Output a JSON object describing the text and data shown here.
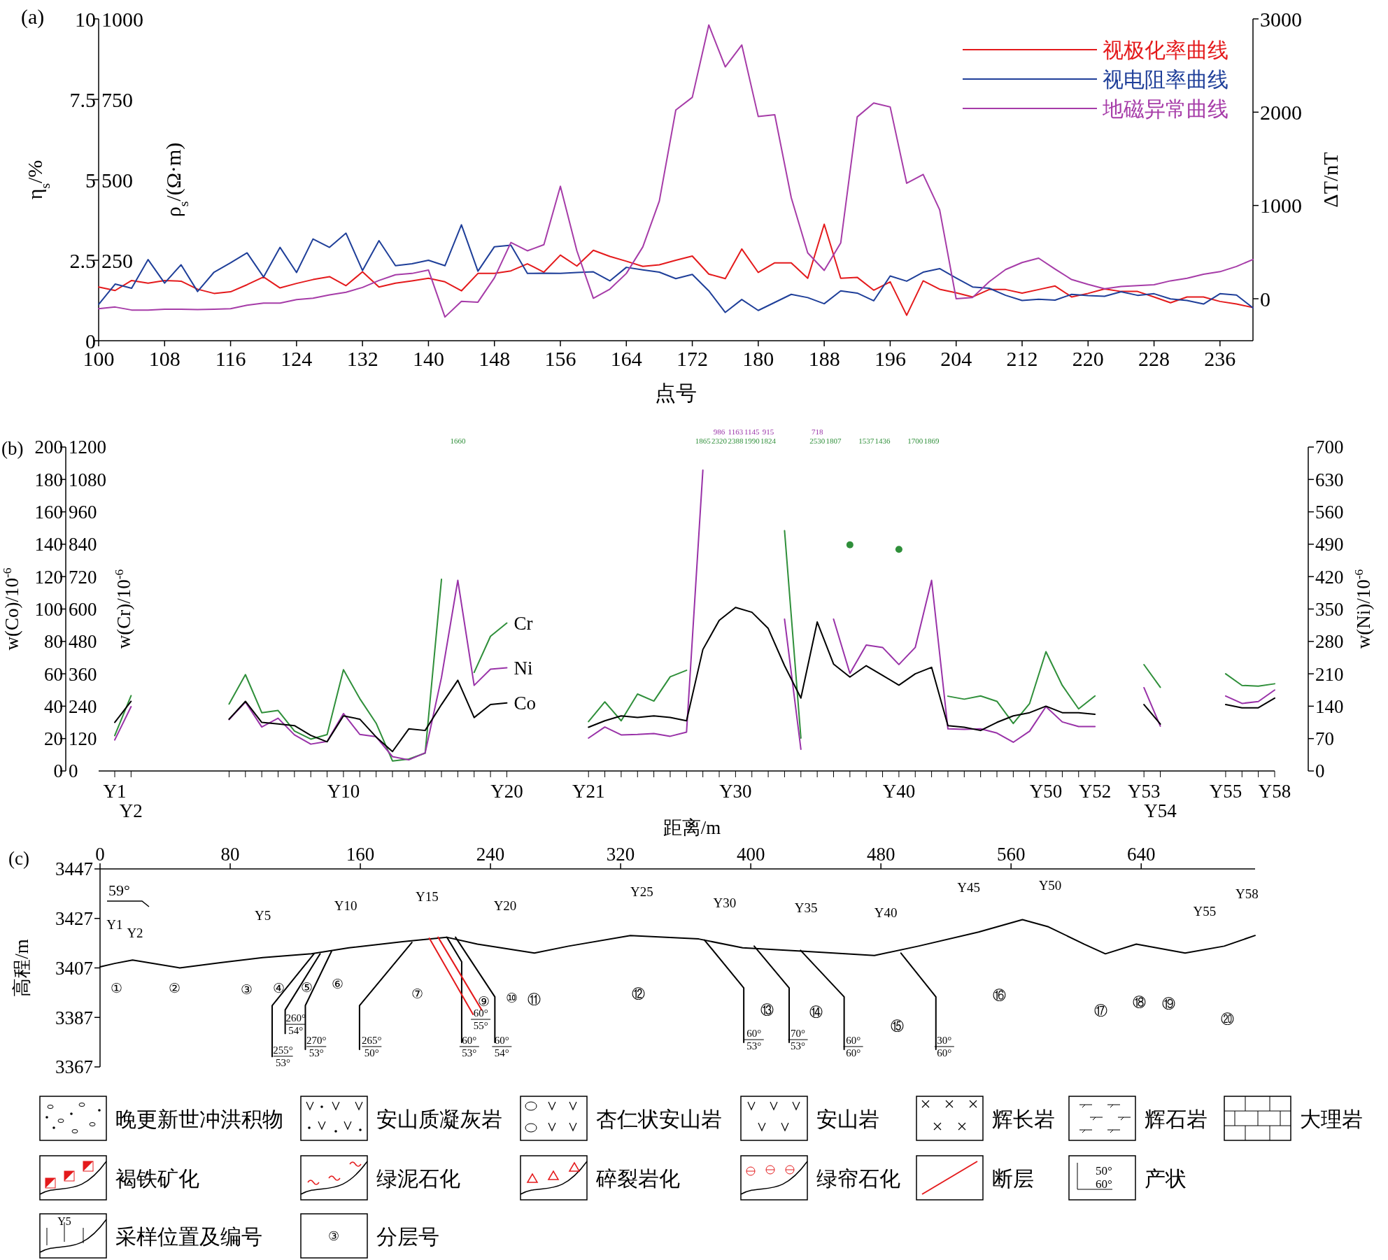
{
  "chart_data": [
    {
      "type": "line",
      "title": "(a)",
      "xlabel": "点号",
      "ylabel": "η$_{s}$/%",
      "y2label": "ρ$_{s}$/(Ω·m)",
      "y3label": "ΔT/nT",
      "legend": "top right",
      "x": [
        100,
        102,
        104,
        106,
        108,
        110,
        112,
        114,
        116,
        118,
        120,
        122,
        124,
        126,
        128,
        130,
        132,
        134,
        136,
        138,
        140,
        142,
        144,
        146,
        148,
        150,
        152,
        154,
        156,
        158,
        160,
        162,
        164,
        166,
        168,
        170,
        172,
        174,
        176,
        178,
        180,
        182,
        184,
        186,
        188,
        190,
        192,
        194,
        196,
        198,
        200,
        202,
        204,
        206,
        208,
        210,
        212,
        214,
        216,
        218,
        220,
        222,
        224,
        226,
        228,
        230,
        232,
        234,
        236,
        238,
        240
      ],
      "xlim": [
        100,
        240
      ],
      "xticks": [
        100,
        108,
        116,
        124,
        132,
        140,
        148,
        156,
        164,
        172,
        180,
        188,
        196,
        204,
        212,
        220,
        228,
        236
      ],
      "ylim": [
        0,
        10
      ],
      "yticks": [
        0,
        2.5,
        5,
        7.5,
        10
      ],
      "y2lim": [
        0,
        1000
      ],
      "y2ticks": [
        250,
        500,
        750,
        1000
      ],
      "y3lim": [
        -450,
        3000
      ],
      "y3ticks": [
        0,
        1000,
        2000,
        3000
      ],
      "series": [
        {
          "name": "视极化率曲线",
          "color": "#e41a1c",
          "axis": "y",
          "values": [
            1.67,
            1.56,
            1.87,
            1.79,
            1.87,
            1.85,
            1.6,
            1.47,
            1.52,
            1.74,
            1.98,
            1.64,
            1.78,
            1.9,
            1.99,
            1.71,
            2.14,
            1.67,
            1.79,
            1.86,
            1.94,
            1.83,
            1.55,
            2.09,
            2.09,
            2.17,
            2.39,
            2.13,
            2.66,
            2.32,
            2.81,
            2.62,
            2.47,
            2.31,
            2.36,
            2.5,
            2.63,
            2.07,
            1.93,
            2.85,
            2.12,
            2.42,
            2.42,
            1.94,
            3.62,
            1.94,
            1.97,
            1.57,
            1.83,
            0.79,
            1.86,
            1.6,
            1.49,
            1.36,
            1.59,
            1.59,
            1.48,
            1.59,
            1.7,
            1.36,
            1.47,
            1.61,
            1.53,
            1.53,
            1.36,
            1.18,
            1.36,
            1.36,
            1.22,
            1.14,
            1.03
          ]
        },
        {
          "name": "视电阻率曲线",
          "color": "#1f3f99",
          "axis": "y2",
          "values": [
            113,
            176,
            163,
            252,
            179,
            236,
            153,
            213,
            242,
            273,
            198,
            290,
            212,
            316,
            290,
            334,
            218,
            311,
            233,
            239,
            250,
            233,
            360,
            216,
            292,
            297,
            209,
            210,
            209,
            212,
            214,
            186,
            228,
            220,
            213,
            193,
            206,
            155,
            88,
            128,
            94,
            119,
            144,
            134,
            115,
            155,
            148,
            124,
            201,
            185,
            213,
            224,
            195,
            167,
            163,
            141,
            125,
            129,
            126,
            144,
            140,
            138,
            152,
            141,
            146,
            130,
            125,
            114,
            146,
            142,
            102
          ]
        },
        {
          "name": "地磁异常曲线",
          "color": "#a63ca8",
          "axis": "y3",
          "values": [
            -107,
            -89,
            -121,
            -121,
            -112,
            -112,
            -117,
            -112,
            -107,
            -70,
            -47,
            -47,
            -9,
            5,
            42,
            70,
            121,
            196,
            257,
            271,
            308,
            -196,
            -28,
            -37,
            224,
            603,
            514,
            579,
            1206,
            514,
            5,
            103,
            271,
            556,
            1047,
            2023,
            2159,
            2935,
            2486,
            2720,
            1953,
            1972,
            1084,
            491,
            304,
            598,
            1949,
            2098,
            2056,
            1238,
            1332,
            953,
            0,
            14,
            182,
            313,
            388,
            435,
            318,
            206,
            154,
            107,
            131,
            140,
            150,
            192,
            220,
            262,
            290,
            346,
            421
          ]
        }
      ]
    },
    {
      "type": "line",
      "title": "(b)",
      "xlabel": "距离/m",
      "ylabel": "w(Co)/10$^{-6}$",
      "y2label": "w(Cr)/10$^{-6}$",
      "y3label": "w(Ni)/10$^{-6}$",
      "categories": [
        "Y1",
        "Y2",
        null,
        null,
        null,
        null,
        null,
        null,
        null,
        null,
        null,
        null,
        null,
        null,
        "Y10",
        null,
        null,
        null,
        null,
        null,
        null,
        null,
        null,
        null,
        "Y20",
        null,
        null,
        null,
        null,
        "Y21",
        null,
        null,
        null,
        null,
        null,
        null,
        null,
        null,
        "Y30",
        null,
        null,
        null,
        null,
        null,
        null,
        null,
        null,
        null,
        "Y40",
        null,
        null,
        null,
        null,
        null,
        null,
        null,
        null,
        "Y50",
        null,
        null,
        "Y52",
        null,
        null,
        "Y53",
        "Y54",
        null,
        null,
        null,
        "Y55",
        null,
        null,
        "Y58"
      ],
      "ylim": [
        0,
        200
      ],
      "yticks": [
        0,
        20,
        40,
        60,
        80,
        100,
        120,
        140,
        160,
        180,
        200
      ],
      "y2lim": [
        0,
        1200
      ],
      "y2ticks": [
        0,
        120,
        240,
        360,
        480,
        600,
        720,
        840,
        960,
        1080,
        1200
      ],
      "y3lim": [
        0,
        700
      ],
      "y3ticks": [
        0,
        70,
        140,
        210,
        280,
        350,
        420,
        490,
        560,
        630,
        700
      ],
      "series": [
        {
          "name": "Cr",
          "color": "#2f8f3a",
          "axis": "y2",
          "values": [
            131,
            279,
            null,
            null,
            null,
            null,
            null,
            248,
            357,
            216,
            224,
            148,
            118,
            135,
            375,
            268,
            177,
            37,
            44,
            66,
            710,
            null,
            365,
            499,
            548,
            null,
            null,
            null,
            null,
            183,
            256,
            186,
            285,
            259,
            349,
            373,
            null,
            null,
            null,
            null,
            null,
            890,
            122,
            null,
            null,
            838,
            null,
            null,
            821,
            null,
            null,
            277,
            266,
            278,
            258,
            176,
            250,
            442,
            317,
            230,
            278,
            null,
            null,
            394,
            310,
            null,
            null,
            null,
            360,
            317,
            314,
            323
          ],
          "value_labels": [
            null,
            null,
            null,
            null,
            null,
            null,
            null,
            null,
            null,
            null,
            null,
            null,
            null,
            null,
            null,
            null,
            null,
            null,
            null,
            null,
            null,
            "1660",
            null,
            null,
            null,
            null,
            null,
            null,
            null,
            null,
            null,
            null,
            null,
            null,
            null,
            null,
            "1865",
            "2320",
            "2388",
            "1990",
            "1824",
            null,
            null,
            "2530",
            "1807",
            null,
            "1537",
            "1436",
            null,
            "1700",
            "1869",
            null,
            null,
            null,
            null,
            null,
            null,
            null,
            null,
            null,
            null,
            null,
            null,
            null,
            null,
            null,
            null,
            null,
            null,
            null,
            null,
            null
          ]
        },
        {
          "name": "Ni",
          "color": "#9932a8",
          "axis": "y3",
          "values": [
            67,
            139,
            null,
            null,
            null,
            null,
            null,
            111,
            149,
            95,
            114,
            78,
            58,
            64,
            124,
            79,
            74,
            31,
            24,
            39,
            202,
            412,
            185,
            220,
            223,
            null,
            null,
            null,
            null,
            71,
            95,
            78,
            79,
            81,
            75,
            84,
            650,
            null,
            null,
            null,
            null,
            328,
            47,
            null,
            328,
            211,
            272,
            267,
            230,
            267,
            412,
            91,
            90,
            91,
            82,
            62,
            86,
            139,
            106,
            96,
            96,
            null,
            null,
            180,
            97,
            null,
            null,
            null,
            162,
            146,
            150,
            175
          ],
          "value_labels": [
            null,
            null,
            null,
            null,
            null,
            null,
            null,
            null,
            null,
            null,
            null,
            null,
            null,
            null,
            null,
            null,
            null,
            null,
            null,
            null,
            null,
            null,
            null,
            null,
            null,
            null,
            null,
            null,
            null,
            null,
            null,
            null,
            null,
            null,
            null,
            null,
            null,
            "986",
            "1163",
            "1145",
            "915",
            null,
            null,
            "718",
            null,
            null,
            null,
            null,
            null,
            null,
            null,
            null,
            null,
            null,
            null,
            null,
            null,
            null,
            null,
            null,
            null,
            null,
            null,
            null,
            null,
            null,
            null,
            null,
            null,
            null,
            null,
            null
          ]
        },
        {
          "name": "Co",
          "color": "#000000",
          "axis": "y",
          "values": [
            30,
            43,
            null,
            null,
            null,
            null,
            null,
            32,
            43,
            30,
            29,
            28,
            22,
            18,
            34,
            32,
            21,
            12,
            26,
            25,
            41,
            56,
            33,
            41,
            42,
            null,
            null,
            null,
            null,
            27,
            31,
            34,
            33,
            34,
            33,
            31,
            75,
            93,
            101,
            98,
            88,
            65,
            45,
            92,
            66,
            58,
            65,
            59,
            53,
            60,
            64,
            28,
            27,
            25,
            30,
            34,
            36,
            40,
            36,
            36,
            35,
            null,
            null,
            41,
            29,
            null,
            null,
            null,
            41,
            39,
            39,
            45
          ]
        }
      ]
    },
    {
      "type": "line",
      "title": "(c)",
      "ylabel": "高程/m",
      "xlim": [
        0,
        710
      ],
      "xticks": [
        0,
        80,
        160,
        240,
        320,
        400,
        480,
        560,
        640
      ],
      "ylim": [
        3367,
        3447
      ],
      "yticks": [
        3367,
        3387,
        3407,
        3427,
        3447
      ],
      "series": [
        {
          "color": "#000000",
          "x": [
            0,
            9,
            20,
            49,
            74,
            100,
            130,
            153,
            186,
            213,
            232,
            267,
            288,
            326,
            368,
            395,
            433,
            476,
            503,
            540,
            567,
            583,
            605,
            618,
            637,
            667,
            691,
            710
          ],
          "values": [
            3407.4,
            3408.8,
            3410.2,
            3407,
            3409.1,
            3411.2,
            3412.7,
            3415.1,
            3417.6,
            3419.4,
            3416.6,
            3413,
            3415.8,
            3420.1,
            3418.7,
            3415.1,
            3413.7,
            3412,
            3415.8,
            3421.5,
            3426.5,
            3423.6,
            3416.6,
            3412.7,
            3416.6,
            3413,
            3415.8,
            3420.1
          ]
        },
        {
          "color": "#000000",
          "x": [
            131.5,
            105.8,
            105.8
          ],
          "values": [
            3412.7,
            3391.8,
            3371.2
          ]
        },
        {
          "color": "#000000",
          "x": [
            135.3,
            113.8,
            113.8
          ],
          "values": [
            3412.7,
            3390,
            3380.5
          ]
        },
        {
          "color": "#000000",
          "x": [
            142.3,
            126.2,
            126.2
          ],
          "values": [
            3413.7,
            3391.8,
            3374.1
          ]
        },
        {
          "color": "#000000",
          "x": [
            191.7,
            159.5,
            159.5
          ],
          "values": [
            3417.3,
            3391.8,
            3374.1
          ]
        },
        {
          "color": "#000000",
          "x": [
            213.2,
            222.3,
            222.3
          ],
          "values": [
            3419.4,
            3409.5,
            3376.9
          ]
        },
        {
          "color": "#000000",
          "x": [
            218.5,
            242.7,
            242.7
          ],
          "values": [
            3419.4,
            3395.3,
            3376.9
          ]
        },
        {
          "color": "#e41a1c",
          "x": [
            202.4,
            229.3
          ],
          "values": [
            3419,
            3388.2
          ]
        },
        {
          "color": "#e41a1c",
          "x": [
            207.8,
            234.6
          ],
          "values": [
            3419.4,
            3390
          ]
        },
        {
          "color": "#000000",
          "x": [
            371.5,
            395.7,
            395.7
          ],
          "values": [
            3418.3,
            3398.9,
            3376.9
          ]
        },
        {
          "color": "#000000",
          "x": [
            402.1,
            423.6,
            423.6
          ],
          "values": [
            3415.8,
            3398.9,
            3376.9
          ]
        },
        {
          "color": "#000000",
          "x": [
            430.6,
            457.4,
            457.4
          ],
          "values": [
            3414.1,
            3395.3,
            3374.1
          ]
        },
        {
          "color": "#000000",
          "x": [
            492.3,
            513.8,
            513.8
          ],
          "values": [
            3413,
            3395.3,
            3374.1
          ]
        }
      ],
      "annotations": [
        "Y1",
        "Y2",
        "Y5",
        "Y10",
        "Y15",
        "Y20",
        "Y25",
        "Y30",
        "Y35",
        "Y40",
        "Y45",
        "Y50",
        "Y55",
        "Y58",
        "①",
        "②",
        "③",
        "④",
        "⑤",
        "⑥",
        "⑦",
        "⑨",
        "⑩",
        "⑪",
        "⑫",
        "⑬",
        "⑭",
        "⑮",
        "⑯",
        "⑰",
        "⑱",
        "⑲",
        "⑳",
        "260°\n54°",
        "255°\n53°",
        "270°\n53°",
        "265°\n50°",
        "60°\n55°",
        "60°\n53°",
        "60°\n54°",
        "60°\n53°",
        "70°\n53°",
        "60°\n60°",
        "30°\n60°",
        "晚更新世冲洪积物",
        "安山质凝灰岩",
        "杏仁状安山岩",
        "安山岩",
        "辉长岩",
        "辉石岩",
        "大理岩",
        "褐铁矿化",
        "绿泥石化",
        "碎裂岩化",
        "绿帘石化",
        "断层",
        "产状",
        "采样位置及编号",
        "分层号",
        "50°\n60°",
        "Y5",
        "③",
        "59°"
      ]
    }
  ]
}
